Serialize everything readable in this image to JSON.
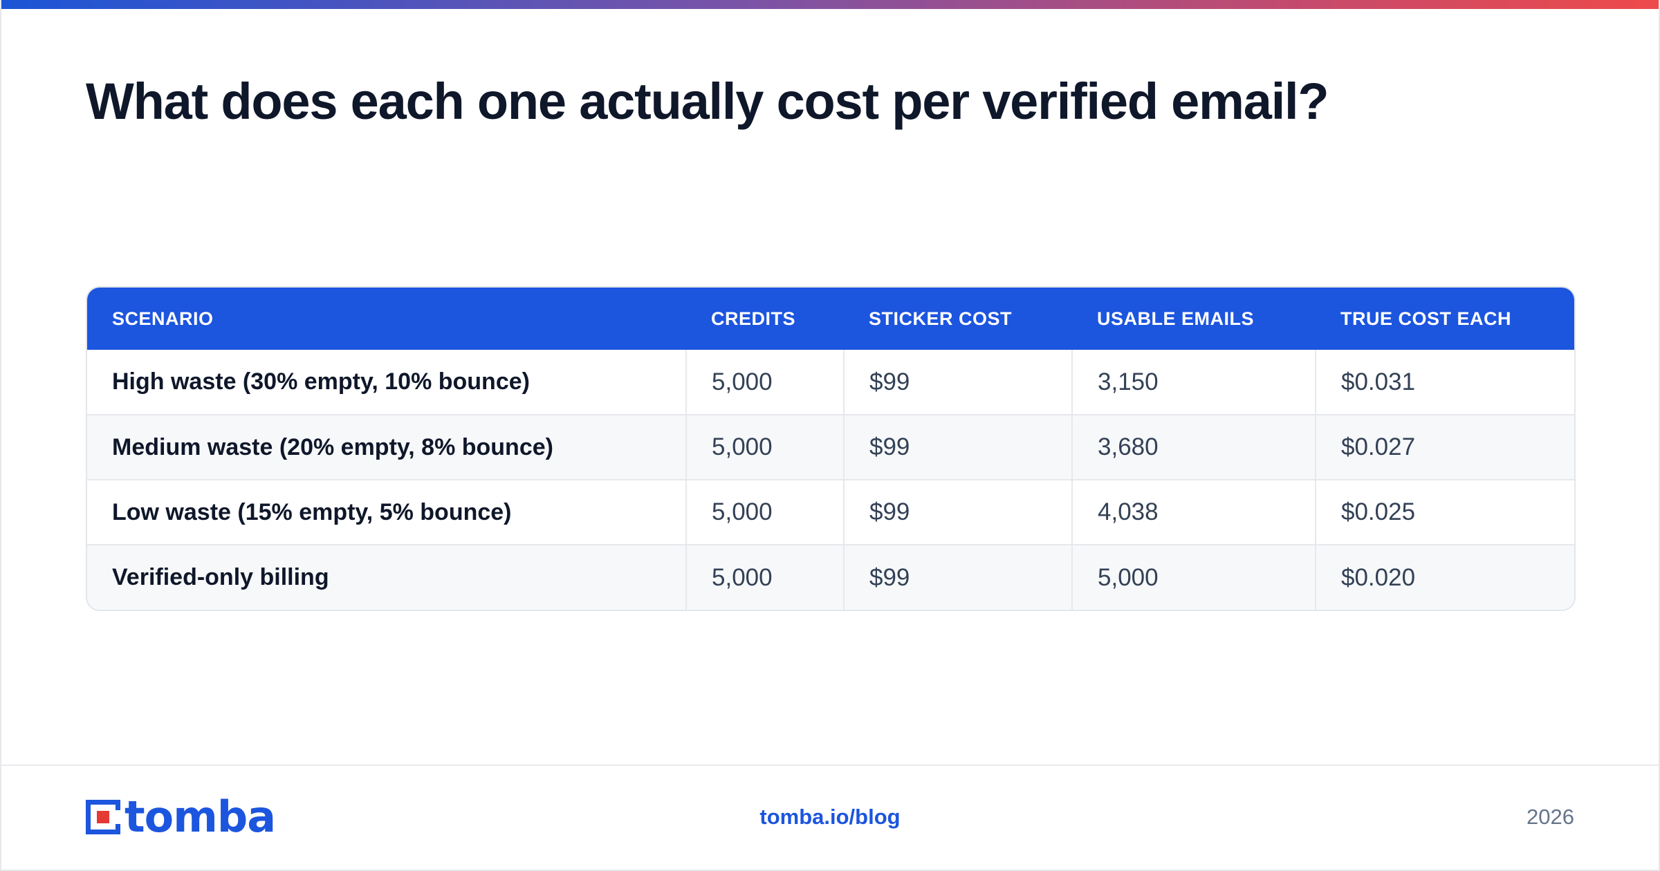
{
  "colors": {
    "accent": "#1c55de",
    "title": "#0f172a",
    "body_text": "#334155",
    "muted": "#64748b",
    "logo_red": "#e53935"
  },
  "title": "What does each one actually cost per verified email?",
  "table": {
    "headers": [
      "SCENARIO",
      "CREDITS",
      "STICKER COST",
      "USABLE EMAILS",
      "TRUE COST EACH"
    ],
    "rows": [
      [
        "High waste (30% empty, 10% bounce)",
        "5,000",
        "$99",
        "3,150",
        "$0.031"
      ],
      [
        "Medium waste (20% empty, 8% bounce)",
        "5,000",
        "$99",
        "3,680",
        "$0.027"
      ],
      [
        "Low waste (15% empty, 5% bounce)",
        "5,000",
        "$99",
        "4,038",
        "$0.025"
      ],
      [
        "Verified-only billing",
        "5,000",
        "$99",
        "5,000",
        "$0.020"
      ]
    ]
  },
  "footer": {
    "logo_text": "tomba",
    "logo_icon": "tomba-logo-icon",
    "link": "tomba.io/blog",
    "year": "2026"
  }
}
